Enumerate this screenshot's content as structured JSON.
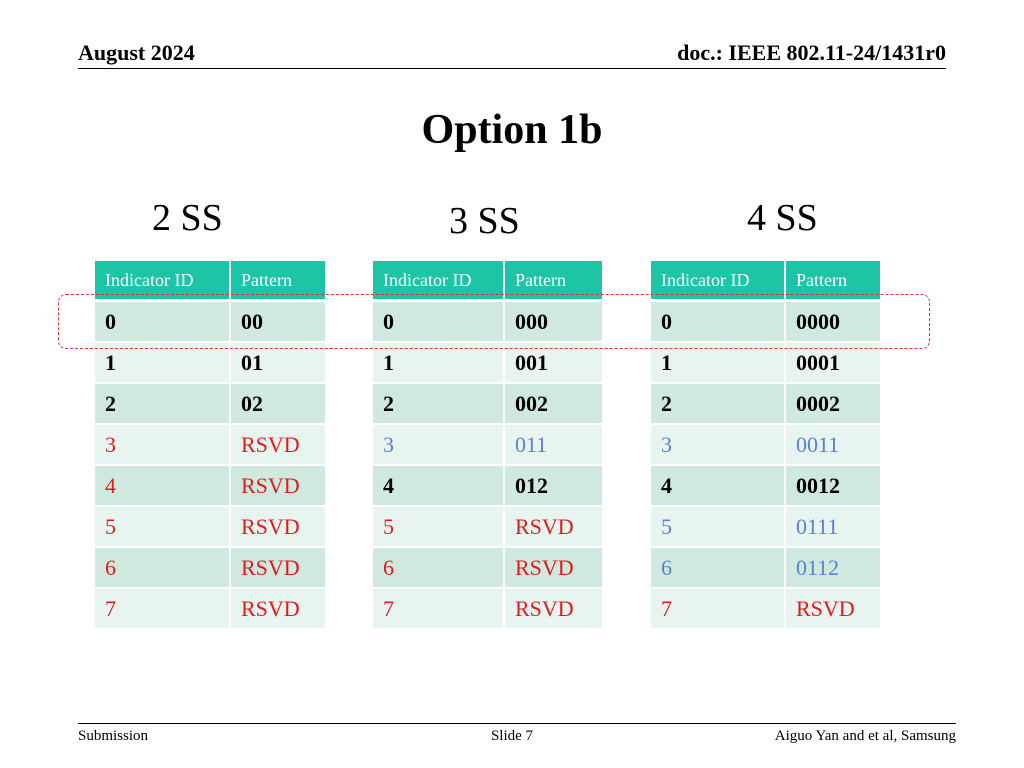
{
  "header": {
    "date": "August 2024",
    "doc": "doc.: IEEE 802.11-24/1431r0"
  },
  "title": "Option 1b",
  "tables": [
    {
      "label": "2 SS",
      "columns": [
        "Indicator ID",
        "Pattern"
      ],
      "rows": [
        {
          "id": "0",
          "pattern": "00",
          "style": "bold"
        },
        {
          "id": "1",
          "pattern": "01",
          "style": "bold"
        },
        {
          "id": "2",
          "pattern": "02",
          "style": "bold"
        },
        {
          "id": "3",
          "pattern": "RSVD",
          "style": "red"
        },
        {
          "id": "4",
          "pattern": "RSVD",
          "style": "red"
        },
        {
          "id": "5",
          "pattern": "RSVD",
          "style": "red"
        },
        {
          "id": "6",
          "pattern": "RSVD",
          "style": "red"
        },
        {
          "id": "7",
          "pattern": "RSVD",
          "style": "red"
        }
      ]
    },
    {
      "label": "3 SS",
      "columns": [
        "Indicator ID",
        "Pattern"
      ],
      "rows": [
        {
          "id": "0",
          "pattern": "000",
          "style": "bold"
        },
        {
          "id": "1",
          "pattern": "001",
          "style": "bold"
        },
        {
          "id": "2",
          "pattern": "002",
          "style": "bold"
        },
        {
          "id": "3",
          "pattern": "011",
          "style": "blue"
        },
        {
          "id": "4",
          "pattern": "012",
          "style": "bold"
        },
        {
          "id": "5",
          "pattern": "RSVD",
          "style": "red"
        },
        {
          "id": "6",
          "pattern": "RSVD",
          "style": "red"
        },
        {
          "id": "7",
          "pattern": "RSVD",
          "style": "red"
        }
      ]
    },
    {
      "label": "4 SS",
      "columns": [
        "Indicator ID",
        "Pattern"
      ],
      "rows": [
        {
          "id": "0",
          "pattern": "0000",
          "style": "bold"
        },
        {
          "id": "1",
          "pattern": "0001",
          "style": "bold"
        },
        {
          "id": "2",
          "pattern": "0002",
          "style": "bold"
        },
        {
          "id": "3",
          "pattern": "0011",
          "style": "blue"
        },
        {
          "id": "4",
          "pattern": "0012",
          "style": "bold"
        },
        {
          "id": "5",
          "pattern": "0111",
          "style": "blue"
        },
        {
          "id": "6",
          "pattern": "0112",
          "style": "blue"
        },
        {
          "id": "7",
          "pattern": "RSVD",
          "style": "red"
        }
      ]
    }
  ],
  "colors": {
    "header_fill": "#1dc4a6",
    "row_dark": "#cfe9df",
    "row_light": "#e8f4ef",
    "reserved_text": "#e11b1b",
    "highlight_text": "#5b7fd8",
    "dashed_box": "#e03030"
  },
  "footer": {
    "left": "Submission",
    "center": "Slide 7",
    "right": "Aiguo Yan and et al, Samsung"
  }
}
